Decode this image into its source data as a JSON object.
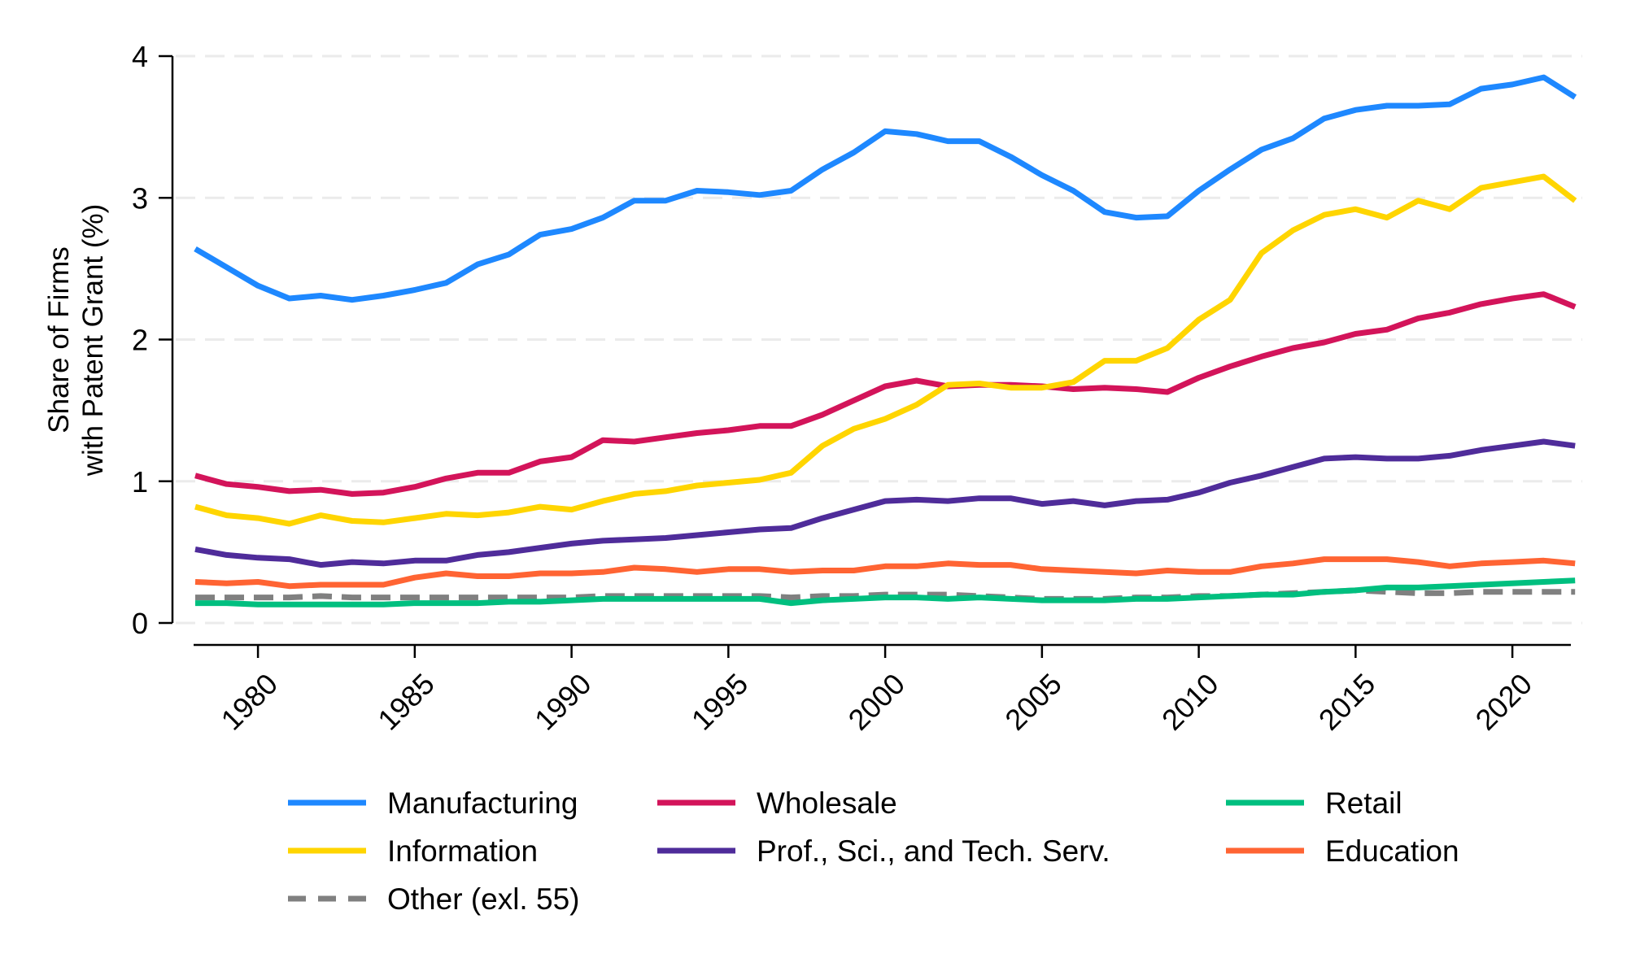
{
  "chart_data": {
    "type": "line",
    "title": "",
    "xlabel": "",
    "ylabel": [
      "Share of Firms",
      "with Patent Grant (%)"
    ],
    "xlim": [
      1978,
      2022
    ],
    "ylim": [
      0,
      4
    ],
    "grid": true,
    "x_ticks": [
      1980,
      1985,
      1990,
      1995,
      2000,
      2005,
      2010,
      2015,
      2020
    ],
    "x_tick_labels": [
      "1980",
      "1985",
      "1990",
      "1995",
      "2000",
      "2005",
      "2010",
      "2015",
      "2020"
    ],
    "y_ticks": [
      0,
      1,
      2,
      3,
      4
    ],
    "y_tick_labels": [
      "0",
      "1",
      "2",
      "3",
      "4"
    ],
    "legend_position": "bottom",
    "x": [
      1978,
      1979,
      1980,
      1981,
      1982,
      1983,
      1984,
      1985,
      1986,
      1987,
      1988,
      1989,
      1990,
      1991,
      1992,
      1993,
      1994,
      1995,
      1996,
      1997,
      1998,
      1999,
      2000,
      2001,
      2002,
      2003,
      2004,
      2005,
      2006,
      2007,
      2008,
      2009,
      2010,
      2011,
      2012,
      2013,
      2014,
      2015,
      2016,
      2017,
      2018,
      2019,
      2020,
      2021,
      2022
    ],
    "series": [
      {
        "name": "Manufacturing",
        "color": "#1E88FF",
        "dash": false,
        "values": [
          2.64,
          2.51,
          2.38,
          2.29,
          2.31,
          2.28,
          2.31,
          2.35,
          2.4,
          2.53,
          2.6,
          2.74,
          2.78,
          2.86,
          2.98,
          2.98,
          3.05,
          3.04,
          3.02,
          3.05,
          3.2,
          3.32,
          3.47,
          3.45,
          3.4,
          3.4,
          3.29,
          3.16,
          3.05,
          2.9,
          2.86,
          2.87,
          3.05,
          3.2,
          3.34,
          3.42,
          3.56,
          3.62,
          3.65,
          3.65,
          3.66,
          3.77,
          3.8,
          3.85,
          3.71
        ]
      },
      {
        "name": "Information",
        "color": "#FFD500",
        "dash": false,
        "values": [
          0.82,
          0.76,
          0.74,
          0.7,
          0.76,
          0.72,
          0.71,
          0.74,
          0.77,
          0.76,
          0.78,
          0.82,
          0.8,
          0.86,
          0.91,
          0.93,
          0.97,
          0.99,
          1.01,
          1.06,
          1.25,
          1.37,
          1.44,
          1.54,
          1.68,
          1.69,
          1.66,
          1.66,
          1.7,
          1.85,
          1.85,
          1.94,
          2.14,
          2.28,
          2.61,
          2.77,
          2.88,
          2.92,
          2.86,
          2.98,
          2.92,
          3.07,
          3.11,
          3.15,
          2.98
        ]
      },
      {
        "name": "Other (exl. 55)",
        "color": "#808080",
        "dash": true,
        "values": [
          0.18,
          0.18,
          0.18,
          0.18,
          0.19,
          0.18,
          0.18,
          0.18,
          0.18,
          0.18,
          0.18,
          0.18,
          0.18,
          0.19,
          0.19,
          0.19,
          0.19,
          0.19,
          0.19,
          0.18,
          0.19,
          0.19,
          0.2,
          0.2,
          0.2,
          0.19,
          0.18,
          0.17,
          0.17,
          0.17,
          0.18,
          0.18,
          0.19,
          0.19,
          0.2,
          0.21,
          0.22,
          0.23,
          0.22,
          0.21,
          0.21,
          0.22,
          0.22,
          0.22,
          0.22
        ]
      },
      {
        "name": "Wholesale",
        "color": "#D3145A",
        "dash": false,
        "values": [
          1.04,
          0.98,
          0.96,
          0.93,
          0.94,
          0.91,
          0.92,
          0.96,
          1.02,
          1.06,
          1.06,
          1.14,
          1.17,
          1.29,
          1.28,
          1.31,
          1.34,
          1.36,
          1.39,
          1.39,
          1.47,
          1.57,
          1.67,
          1.71,
          1.67,
          1.68,
          1.68,
          1.67,
          1.65,
          1.66,
          1.65,
          1.63,
          1.73,
          1.81,
          1.88,
          1.94,
          1.98,
          2.04,
          2.07,
          2.15,
          2.19,
          2.25,
          2.29,
          2.32,
          2.23
        ]
      },
      {
        "name": "Prof., Sci., and Tech. Serv.",
        "color": "#4F2C9A",
        "dash": false,
        "values": [
          0.52,
          0.48,
          0.46,
          0.45,
          0.41,
          0.43,
          0.42,
          0.44,
          0.44,
          0.48,
          0.5,
          0.53,
          0.56,
          0.58,
          0.59,
          0.6,
          0.62,
          0.64,
          0.66,
          0.67,
          0.74,
          0.8,
          0.86,
          0.87,
          0.86,
          0.88,
          0.88,
          0.84,
          0.86,
          0.83,
          0.86,
          0.87,
          0.92,
          0.99,
          1.04,
          1.1,
          1.16,
          1.17,
          1.16,
          1.16,
          1.18,
          1.22,
          1.25,
          1.28,
          1.25
        ]
      },
      {
        "name": "Retail",
        "color": "#00BF7F",
        "dash": false,
        "values": [
          0.14,
          0.14,
          0.13,
          0.13,
          0.13,
          0.13,
          0.13,
          0.14,
          0.14,
          0.14,
          0.15,
          0.15,
          0.16,
          0.17,
          0.17,
          0.17,
          0.17,
          0.17,
          0.17,
          0.14,
          0.16,
          0.17,
          0.18,
          0.18,
          0.17,
          0.18,
          0.17,
          0.16,
          0.16,
          0.16,
          0.17,
          0.17,
          0.18,
          0.19,
          0.2,
          0.2,
          0.22,
          0.23,
          0.25,
          0.25,
          0.26,
          0.27,
          0.28,
          0.29,
          0.3
        ]
      },
      {
        "name": "Education",
        "color": "#FF6433",
        "dash": false,
        "values": [
          0.29,
          0.28,
          0.29,
          0.26,
          0.27,
          0.27,
          0.27,
          0.32,
          0.35,
          0.33,
          0.33,
          0.35,
          0.35,
          0.36,
          0.39,
          0.38,
          0.36,
          0.38,
          0.38,
          0.36,
          0.37,
          0.37,
          0.4,
          0.4,
          0.42,
          0.41,
          0.41,
          0.38,
          0.37,
          0.36,
          0.35,
          0.37,
          0.36,
          0.36,
          0.4,
          0.42,
          0.45,
          0.45,
          0.45,
          0.43,
          0.4,
          0.42,
          0.43,
          0.44,
          0.42
        ]
      }
    ],
    "legend": [
      {
        "label": "Manufacturing",
        "color": "#1E88FF",
        "dash": false
      },
      {
        "label": "Wholesale",
        "color": "#D3145A",
        "dash": false
      },
      {
        "label": "Retail",
        "color": "#00BF7F",
        "dash": false
      },
      {
        "label": "Information",
        "color": "#FFD500",
        "dash": false
      },
      {
        "label": "Prof., Sci., and Tech. Serv.",
        "color": "#4F2C9A",
        "dash": false
      },
      {
        "label": "Education",
        "color": "#FF6433",
        "dash": false
      },
      {
        "label": "Other (exl. 55)",
        "color": "#808080",
        "dash": true
      }
    ]
  }
}
